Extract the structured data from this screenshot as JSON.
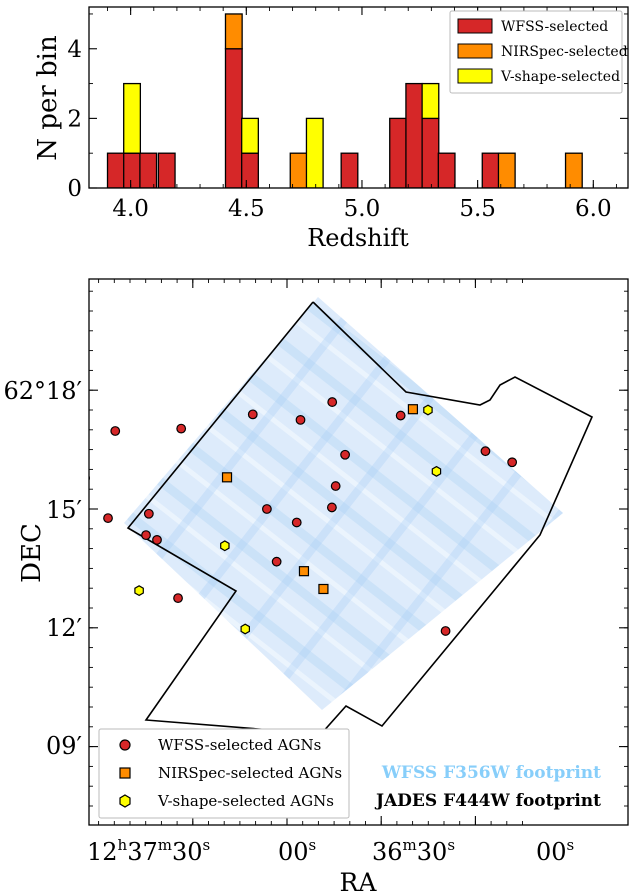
{
  "chart_data": [
    {
      "type": "bar",
      "stacked": true,
      "xlabel": "Redshift",
      "ylabel": "N per bin",
      "xlim": [
        3.82,
        6.15
      ],
      "ylim": [
        0,
        5.2
      ],
      "xticks": [
        4.0,
        4.5,
        5.0,
        5.5,
        6.0
      ],
      "xtick_labels": [
        "4.0",
        "4.5",
        "5.0",
        "5.5",
        "6.0"
      ],
      "yticks": [
        0,
        2,
        4
      ],
      "ytick_labels": [
        "0",
        "2",
        "4"
      ],
      "bin_width": 0.072,
      "legend": {
        "placement": "top-right",
        "entries": [
          "WFSS-selected",
          "NIRSpec-selected",
          "V-shape-selected"
        ]
      },
      "series": [
        {
          "name": "WFSS-selected",
          "color": "#d62728",
          "bars": [
            {
              "x0": 3.9,
              "count": 1
            },
            {
              "x0": 3.97,
              "count": 1
            },
            {
              "x0": 4.04,
              "count": 1
            },
            {
              "x0": 4.12,
              "count": 1
            },
            {
              "x0": 4.41,
              "count": 4
            },
            {
              "x0": 4.48,
              "count": 1
            },
            {
              "x0": 4.91,
              "count": 1
            },
            {
              "x0": 5.12,
              "count": 2
            },
            {
              "x0": 5.19,
              "count": 3
            },
            {
              "x0": 5.26,
              "count": 2
            },
            {
              "x0": 5.33,
              "count": 1
            },
            {
              "x0": 5.52,
              "count": 1
            }
          ]
        },
        {
          "name": "NIRSpec-selected",
          "color": "#ff8c00",
          "bars": [
            {
              "x0": 4.41,
              "count": 1
            },
            {
              "x0": 4.69,
              "count": 1
            },
            {
              "x0": 5.59,
              "count": 1
            },
            {
              "x0": 5.88,
              "count": 1
            }
          ]
        },
        {
          "name": "V-shape-selected",
          "color": "#ffff00",
          "bars": [
            {
              "x0": 3.97,
              "count": 2
            },
            {
              "x0": 4.48,
              "count": 1
            },
            {
              "x0": 4.76,
              "count": 2
            },
            {
              "x0": 5.26,
              "count": 1
            }
          ]
        }
      ]
    },
    {
      "type": "scatter",
      "xlabel": "RA",
      "ylabel": "DEC",
      "xlim_ra_seconds": [
        34.05,
        22.85
      ],
      "ylim_dec_arcmin": [
        1106.8,
        1112.2
      ],
      "xtick_labels": [
        {
          "ra_s": 30,
          "text": "12h37m30s"
        },
        {
          "ra_s": 27,
          "text": "00s"
        },
        {
          "ra_s": 24,
          "text": "36m30s"
        },
        {
          "ra_s": 21,
          "text": "00s"
        }
      ],
      "ytick_labels": [
        {
          "dec_arcmin": 1098,
          "text": "62°18′"
        },
        {
          "dec_arcmin": 1095,
          "text": "15′"
        },
        {
          "dec_arcmin": 1092,
          "text": "12′"
        },
        {
          "dec_arcmin": 1089,
          "text": "09′"
        }
      ],
      "ticks_ra_text": [
        "12",
        "h",
        "37",
        "m",
        "30",
        "s",
        "00",
        "s",
        "36",
        "m",
        "30",
        "s",
        "00",
        "s"
      ],
      "ticks_dec_text": [
        "62°18′",
        "15′",
        "12′",
        "09′"
      ],
      "legend": {
        "placement": "lower-left",
        "entries": [
          "WFSS-selected AGNs",
          "NIRSpec-selected AGNs",
          "V-shape-selected AGNs"
        ]
      },
      "footprint_labels": {
        "wfss": "WFSS F356W footprint",
        "jades": "JADES F444W footprint",
        "wfss_color": "#87cefa",
        "jades_color": "#000000"
      },
      "series": [
        {
          "name": "WFSS-selected AGNs",
          "color": "#d62728",
          "marker": "circle",
          "points": [
            {
              "ra_s": 33.43,
              "dec_m": 15.78
            },
            {
              "ra_s": 32.7,
              "dec_m": 14.77
            },
            {
              "ra_s": 31.14,
              "dec_m": 14.22
            },
            {
              "ra_s": 30.47,
              "dec_m": 12.75
            },
            {
              "ra_s": 31.4,
              "dec_m": 14.88
            },
            {
              "ra_s": 31.49,
              "dec_m": 14.34
            },
            {
              "ra_s": 32.47,
              "dec_m": 16.97
            },
            {
              "ra_s": 30.37,
              "dec_m": 17.03
            },
            {
              "ra_s": 28.09,
              "dec_m": 17.39
            },
            {
              "ra_s": 27.64,
              "dec_m": 15.0
            },
            {
              "ra_s": 26.57,
              "dec_m": 17.25
            },
            {
              "ra_s": 26.69,
              "dec_m": 14.66
            },
            {
              "ra_s": 25.56,
              "dec_m": 17.7
            },
            {
              "ra_s": 25.15,
              "dec_m": 16.37
            },
            {
              "ra_s": 25.45,
              "dec_m": 15.58
            },
            {
              "ra_s": 25.57,
              "dec_m": 15.04
            },
            {
              "ra_s": 23.38,
              "dec_m": 17.36
            },
            {
              "ra_s": 21.95,
              "dec_m": 11.92
            },
            {
              "ra_s": 20.68,
              "dec_m": 16.46
            },
            {
              "ra_s": 19.83,
              "dec_m": 16.18
            },
            {
              "ra_s": 27.33,
              "dec_m": 13.67
            }
          ]
        },
        {
          "name": "NIRSpec-selected AGNs",
          "color": "#ff8c00",
          "marker": "square",
          "points": [
            {
              "ra_s": 28.91,
              "dec_m": 15.8
            },
            {
              "ra_s": 26.46,
              "dec_m": 13.43
            },
            {
              "ra_s": 25.84,
              "dec_m": 12.98
            },
            {
              "ra_s": 22.99,
              "dec_m": 17.52
            }
          ]
        },
        {
          "name": "V-shape-selected AGNs",
          "color": "#ffff00",
          "marker": "hexagon",
          "points": [
            {
              "ra_s": 31.71,
              "dec_m": 12.94
            },
            {
              "ra_s": 28.98,
              "dec_m": 14.07
            },
            {
              "ra_s": 28.33,
              "dec_m": 11.97
            },
            {
              "ra_s": 22.51,
              "dec_m": 17.5
            },
            {
              "ra_s": 22.24,
              "dec_m": 15.95
            }
          ]
        }
      ]
    }
  ]
}
